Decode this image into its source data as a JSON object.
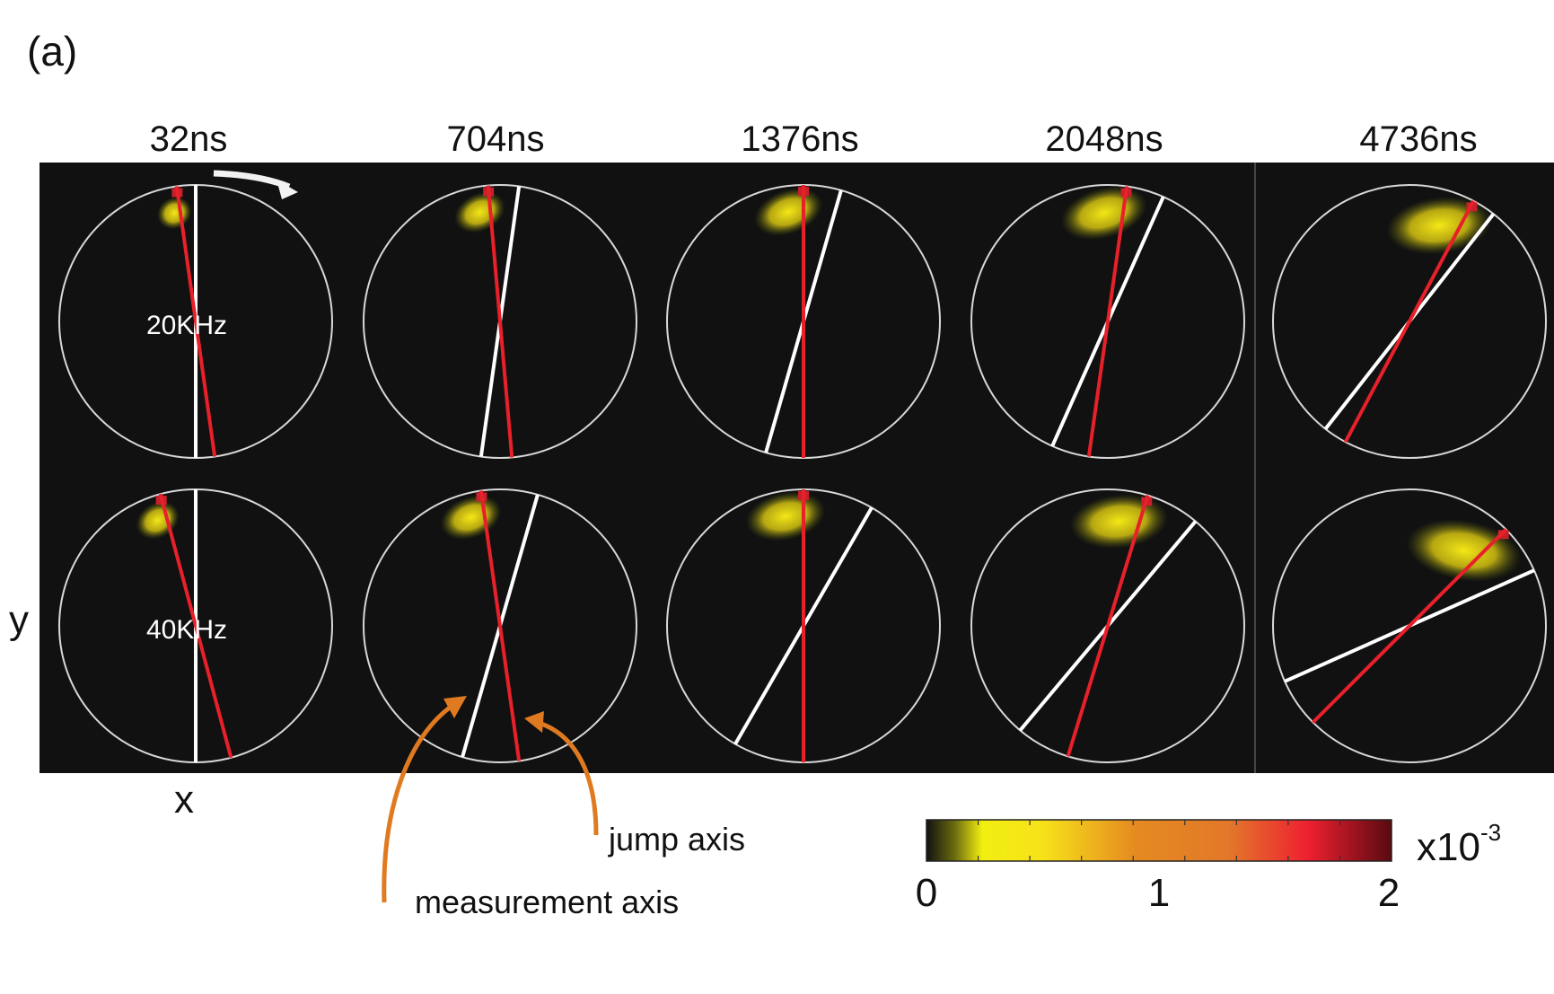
{
  "panel_label": "(a)",
  "times": [
    "32ns",
    "704ns",
    "1376ns",
    "2048ns",
    "4736ns"
  ],
  "rows": [
    {
      "freq": "20KHz",
      "jump_angle_deg": [
        -8,
        -5,
        0,
        8,
        28
      ],
      "measurement_angle_deg": [
        0,
        8,
        16,
        24,
        38
      ]
    },
    {
      "freq": "40KHz",
      "jump_angle_deg": [
        -15,
        -8,
        0,
        17,
        45
      ],
      "measurement_angle_deg": [
        0,
        16,
        30,
        40,
        66
      ]
    }
  ],
  "axes": {
    "x": "x",
    "y": "y"
  },
  "annotations": {
    "jump_axis": "jump axis",
    "measurement_axis": "measurement axis"
  },
  "colorbar": {
    "ticks": [
      "0",
      "1",
      "2"
    ],
    "scale_base": "x10",
    "scale_exp": "-3",
    "min": 0,
    "max": 2
  },
  "colors": {
    "background": "#111111",
    "circle": "#d8d8d8",
    "jump_axis": "#e8202a",
    "measurement_axis": "#ffffff",
    "annotation_arrow": "#e07a20"
  }
}
